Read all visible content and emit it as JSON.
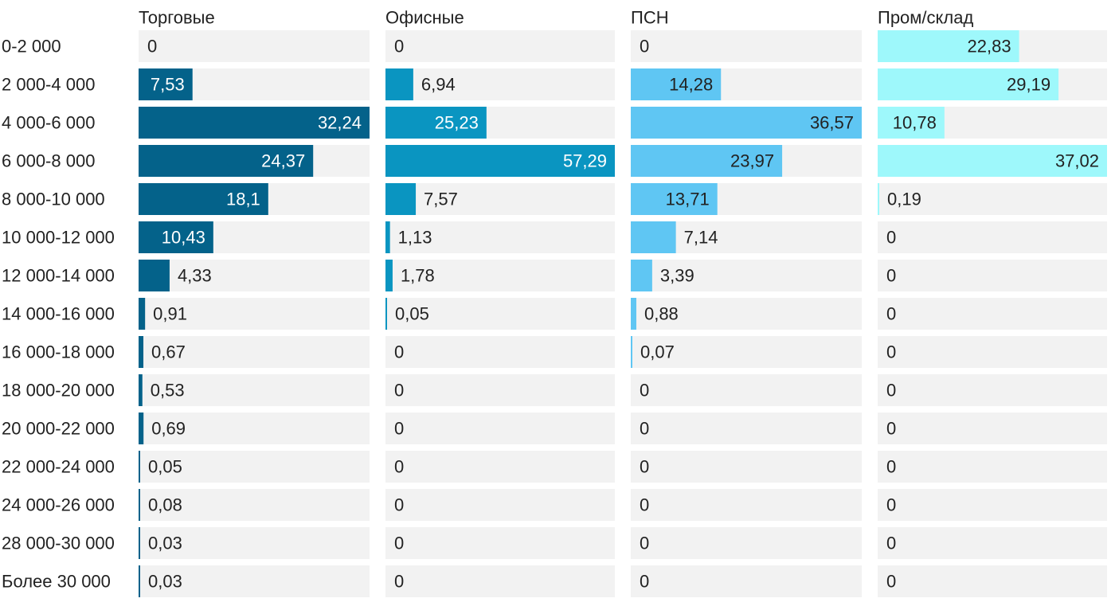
{
  "chart_data": {
    "type": "bar",
    "orientation": "horizontal",
    "layout": "small-multiples",
    "categories": [
      "0-2 000",
      "2 000-4 000",
      "4 000-6 000",
      "6 000-8 000",
      "8 000-10 000",
      "10 000-12 000",
      "12 000-14 000",
      "14 000-16 000",
      "16 000-18 000",
      "18 000-20 000",
      "20 000-22 000",
      "22 000-24 000",
      "24 000-26 000",
      "28 000-30 000",
      "Более 30 000"
    ],
    "series": [
      {
        "name": "Торговые",
        "color": "#04628a",
        "max": 32.24,
        "values": [
          0,
          7.53,
          32.24,
          24.37,
          18.1,
          10.43,
          4.33,
          0.91,
          0.67,
          0.53,
          0.69,
          0.05,
          0.08,
          0.03,
          0.03
        ],
        "labels": [
          "0",
          "7,53",
          "32,24",
          "24,37",
          "18,1",
          "10,43",
          "4,33",
          "0,91",
          "0,67",
          "0,53",
          "0,69",
          "0,05",
          "0,08",
          "0,03",
          "0,03"
        ]
      },
      {
        "name": "Офисные",
        "color": "#0a95c1",
        "max": 57.29,
        "values": [
          0,
          6.94,
          25.23,
          57.29,
          7.57,
          1.13,
          1.78,
          0.05,
          0,
          0,
          0,
          0,
          0,
          0,
          0
        ],
        "labels": [
          "0",
          "6,94",
          "25,23",
          "57,29",
          "7,57",
          "1,13",
          "1,78",
          "0,05",
          "0",
          "0",
          "0",
          "0",
          "0",
          "0",
          "0"
        ]
      },
      {
        "name": "ПСН",
        "color": "#5fc6f3",
        "max": 36.57,
        "values": [
          0,
          14.28,
          36.57,
          23.97,
          13.71,
          7.14,
          3.39,
          0.88,
          0.07,
          0,
          0,
          0,
          0,
          0,
          0
        ],
        "labels": [
          "0",
          "14,28",
          "36,57",
          "23,97",
          "13,71",
          "7,14",
          "3,39",
          "0,88",
          "0,07",
          "0",
          "0",
          "0",
          "0",
          "0",
          "0"
        ]
      },
      {
        "name": "Пром/склад",
        "color": "#9ef8fb",
        "max": 37.02,
        "values": [
          22.83,
          29.19,
          10.78,
          37.02,
          0.19,
          0,
          0,
          0,
          0,
          0,
          0,
          0,
          0,
          0,
          0
        ],
        "labels": [
          "22,83",
          "29,19",
          "10,78",
          "37,02",
          "0,19",
          "0",
          "0",
          "0",
          "0",
          "0",
          "0",
          "0",
          "0",
          "0",
          "0"
        ]
      }
    ],
    "track_color": "#f2f2f2",
    "dark_text_color": "#222222",
    "light_text_color": "#ffffff"
  }
}
